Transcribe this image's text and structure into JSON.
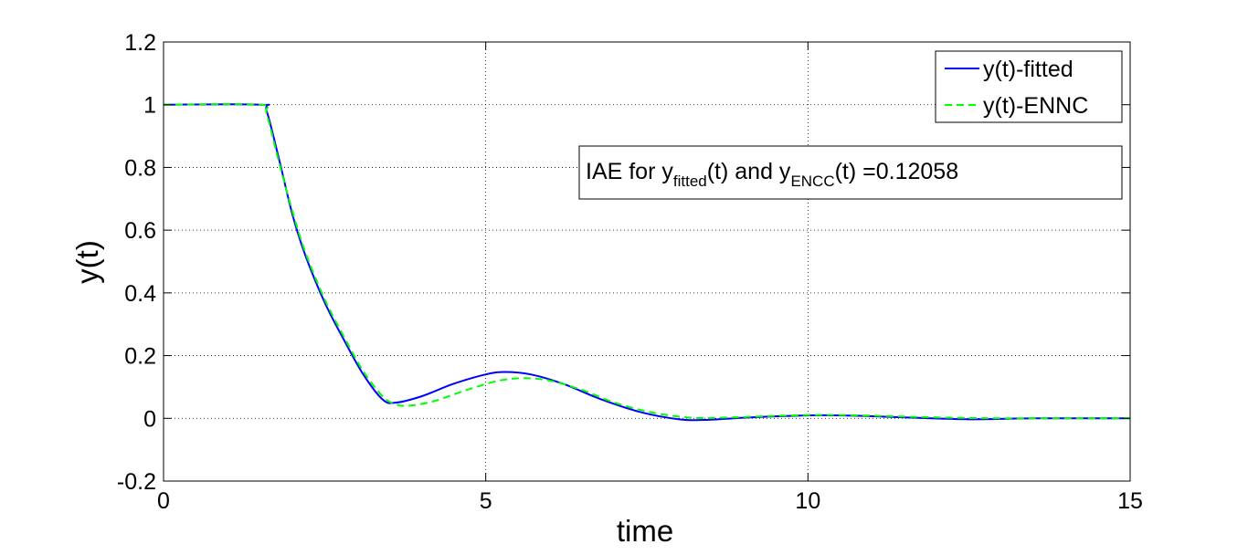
{
  "chart_data": {
    "type": "line",
    "title": "",
    "xlabel": "time",
    "ylabel": "y(t)",
    "xlim": [
      0,
      15
    ],
    "ylim": [
      -0.2,
      1.2
    ],
    "xticks": [
      0,
      5,
      10,
      15
    ],
    "xtick_labels": [
      "0",
      "5",
      "10",
      "15"
    ],
    "yticks": [
      -0.2,
      0,
      0.2,
      0.4,
      0.6,
      0.8,
      1,
      1.2
    ],
    "ytick_labels": [
      "-0.2",
      "0",
      "0.2",
      "0.4",
      "0.6",
      "0.8",
      "1",
      "1.2"
    ],
    "grid": true,
    "legend_position": "top-right",
    "series": [
      {
        "name": "y(t)-fitted",
        "color": "#0000ff",
        "style": "solid",
        "x": [
          0,
          1.5,
          1.6,
          1.8,
          2.0,
          2.2,
          2.5,
          2.8,
          3.1,
          3.4,
          3.6,
          4.0,
          4.5,
          5.0,
          5.3,
          5.7,
          6.2,
          6.8,
          7.4,
          8.0,
          8.4,
          9.0,
          9.6,
          10.2,
          10.8,
          11.5,
          12.5,
          13.5,
          15
        ],
        "y": [
          1,
          1,
          0.98,
          0.82,
          0.65,
          0.52,
          0.37,
          0.25,
          0.14,
          0.06,
          0.05,
          0.07,
          0.11,
          0.14,
          0.148,
          0.14,
          0.11,
          0.06,
          0.02,
          -0.003,
          -0.005,
          0.002,
          0.007,
          0.01,
          0.008,
          0.003,
          -0.003,
          0.0,
          0.0
        ]
      },
      {
        "name": "y(t)-ENNC",
        "color": "#00ff00",
        "style": "dashed",
        "x": [
          0,
          1.5,
          1.6,
          1.8,
          2.0,
          2.2,
          2.5,
          2.8,
          3.1,
          3.4,
          3.6,
          3.8,
          4.2,
          4.7,
          5.2,
          5.6,
          6.0,
          6.5,
          7.0,
          7.6,
          8.2,
          8.8,
          9.5,
          10.2,
          10.9,
          11.6,
          12.5,
          13.5,
          15
        ],
        "y": [
          1,
          1,
          0.97,
          0.81,
          0.66,
          0.53,
          0.38,
          0.26,
          0.15,
          0.07,
          0.045,
          0.04,
          0.055,
          0.09,
          0.12,
          0.128,
          0.12,
          0.09,
          0.05,
          0.018,
          0.002,
          0.003,
          0.008,
          0.011,
          0.009,
          0.005,
          0.001,
          0.0,
          0.0
        ]
      }
    ],
    "annotation": {
      "text_prefix": "IAE for y",
      "sub1": "fitted",
      "text_mid": "(t) and y",
      "sub2": "ENCC",
      "text_suffix": "(t) =0.12058"
    }
  }
}
